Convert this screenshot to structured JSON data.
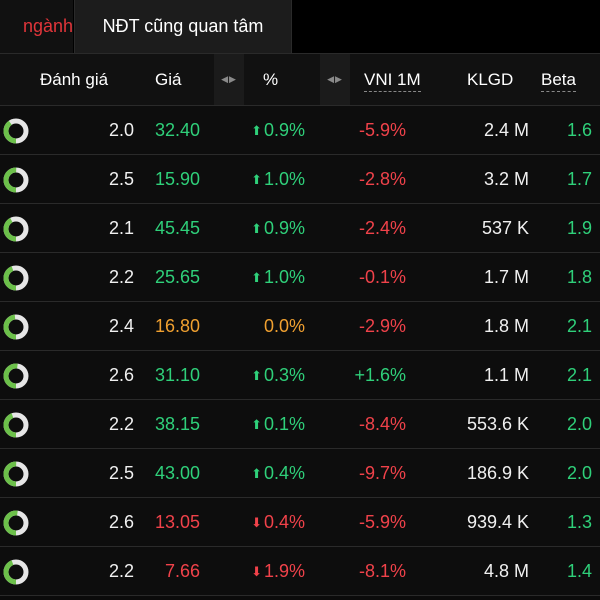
{
  "tabs": {
    "active_label": "ngành",
    "other_label": "NĐT cũng quan tâm"
  },
  "colors": {
    "up": "#2fd07a",
    "down": "#f0424a",
    "flat": "#f0a030",
    "accent_tab": "#e0353a"
  },
  "table": {
    "columns": {
      "rating": "Đánh giá",
      "price": "Giá",
      "pct": "%",
      "vni": "VNI 1M",
      "klgd": "KLGD",
      "beta": "Beta"
    },
    "sort_icon": "left-right-arrows-icon",
    "rows": [
      {
        "rating": "2.0",
        "price": "32.40",
        "direction": "up",
        "pct": "0.9%",
        "vni": "-5.9%",
        "klgd": "2.4 M",
        "beta": "1.6"
      },
      {
        "rating": "2.5",
        "price": "15.90",
        "direction": "up",
        "pct": "1.0%",
        "vni": "-2.8%",
        "klgd": "3.2 M",
        "beta": "1.7"
      },
      {
        "rating": "2.1",
        "price": "45.45",
        "direction": "up",
        "pct": "0.9%",
        "vni": "-2.4%",
        "klgd": "537 K",
        "beta": "1.9"
      },
      {
        "rating": "2.2",
        "price": "25.65",
        "direction": "up",
        "pct": "1.0%",
        "vni": "-0.1%",
        "klgd": "1.7 M",
        "beta": "1.8"
      },
      {
        "rating": "2.4",
        "price": "16.80",
        "direction": "flat",
        "pct": "0.0%",
        "vni": "-2.9%",
        "klgd": "1.8 M",
        "beta": "2.1"
      },
      {
        "rating": "2.6",
        "price": "31.10",
        "direction": "up",
        "pct": "0.3%",
        "vni": "+1.6%",
        "klgd": "1.1 M",
        "beta": "2.1"
      },
      {
        "rating": "2.2",
        "price": "38.15",
        "direction": "up",
        "pct": "0.1%",
        "vni": "-8.4%",
        "klgd": "553.6 K",
        "beta": "2.0"
      },
      {
        "rating": "2.5",
        "price": "43.00",
        "direction": "up",
        "pct": "0.4%",
        "vni": "-9.7%",
        "klgd": "186.9 K",
        "beta": "2.0"
      },
      {
        "rating": "2.6",
        "price": "13.05",
        "direction": "down",
        "pct": "0.4%",
        "vni": "-5.9%",
        "klgd": "939.4 K",
        "beta": "1.3"
      },
      {
        "rating": "2.2",
        "price": "7.66",
        "direction": "down",
        "pct": "1.9%",
        "vni": "-8.1%",
        "klgd": "4.8 M",
        "beta": "1.4"
      }
    ]
  }
}
